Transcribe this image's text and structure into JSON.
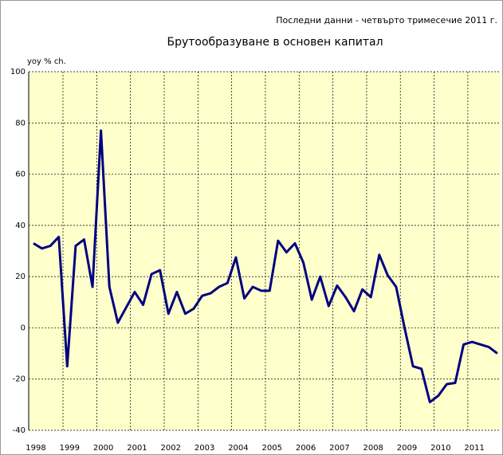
{
  "chart_data": {
    "type": "line",
    "note": "Последни данни - четвърто тримесечие 2011 г.",
    "title": "Брутообразуване в основен капитал",
    "y_label": "yoy % ch.",
    "categories": [
      "1998",
      null,
      null,
      null,
      "1999",
      null,
      null,
      null,
      "2000",
      null,
      null,
      null,
      "2001",
      null,
      null,
      null,
      "2002",
      null,
      null,
      null,
      "2003",
      null,
      null,
      null,
      "2004",
      null,
      null,
      null,
      "2005",
      null,
      null,
      null,
      "2006",
      null,
      null,
      null,
      "2007",
      null,
      null,
      null,
      "2008",
      null,
      null,
      null,
      "2009",
      null,
      null,
      null,
      "2010",
      null,
      null,
      null,
      "2011",
      null,
      null,
      null
    ],
    "series": [
      {
        "color": "#000080",
        "values": [
          33,
          31,
          32,
          35.5,
          -15,
          32,
          34.5,
          16,
          77,
          16,
          2,
          8,
          14,
          9,
          21,
          22.5,
          5.5,
          14,
          5.5,
          7.5,
          12.5,
          13.5,
          16,
          17.5,
          27.5,
          11.5,
          16,
          14.5,
          14.5,
          34,
          29.5,
          33,
          25.5,
          11,
          20,
          8.5,
          16.5,
          12,
          6.5,
          15,
          12,
          28.5,
          20.5,
          16,
          0,
          -15,
          -16,
          -29,
          -26.5,
          -22,
          -21.5,
          -6.5,
          -5.5,
          -6.5,
          -7.5,
          -10
        ]
      }
    ],
    "ylim": [
      -40,
      100
    ],
    "yticks": [
      -40,
      -20,
      0,
      20,
      40,
      60,
      80,
      100
    ],
    "grid": true
  }
}
